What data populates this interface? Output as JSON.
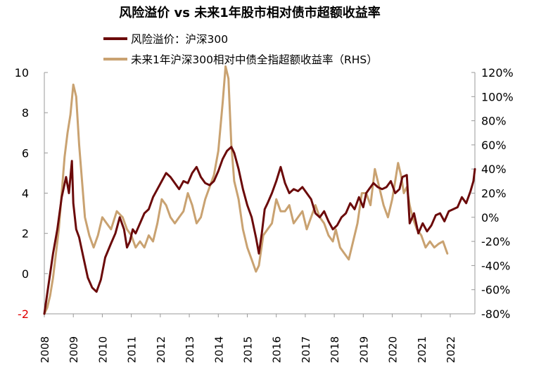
{
  "chart_data": {
    "type": "line",
    "title": "风险溢价 vs 未来1年股市相对债市超额收益率",
    "xlabel": "",
    "ylabel": "",
    "x_ticks": [
      "2008",
      "2009",
      "2010",
      "2011",
      "2012",
      "2013",
      "2014",
      "2015",
      "2016",
      "2017",
      "2018",
      "2019",
      "2020",
      "2021",
      "2022"
    ],
    "xlim": [
      2008.0,
      2022.85
    ],
    "y_left": {
      "ylim": [
        -2,
        10
      ],
      "ticks": [
        "-2",
        "0",
        "2",
        "4",
        "6",
        "8",
        "10"
      ],
      "neg_tick_color": "#e00000"
    },
    "y_right": {
      "ylim": [
        -80,
        120
      ],
      "ticks": [
        "-80%",
        "-60%",
        "-40%",
        "-20%",
        "0%",
        "20%",
        "40%",
        "60%",
        "80%",
        "100%",
        "120%"
      ]
    },
    "legend": {
      "position": "top-left"
    },
    "grid": false,
    "series": [
      {
        "name": "风险溢价：沪深300",
        "axis": "left",
        "color": "#6b0a0a",
        "x": [
          2008.0,
          2008.15,
          2008.3,
          2008.45,
          2008.6,
          2008.75,
          2008.85,
          2008.95,
          2009.0,
          2009.1,
          2009.2,
          2009.35,
          2009.5,
          2009.65,
          2009.8,
          2009.95,
          2010.1,
          2010.3,
          2010.45,
          2010.6,
          2010.75,
          2010.85,
          2010.95,
          2011.05,
          2011.15,
          2011.3,
          2011.45,
          2011.6,
          2011.75,
          2011.9,
          2012.05,
          2012.2,
          2012.35,
          2012.5,
          2012.65,
          2012.8,
          2012.95,
          2013.1,
          2013.25,
          2013.4,
          2013.55,
          2013.7,
          2013.85,
          2014.0,
          2014.15,
          2014.3,
          2014.45,
          2014.55,
          2014.7,
          2014.85,
          2015.0,
          2015.15,
          2015.3,
          2015.4,
          2015.5,
          2015.6,
          2015.7,
          2015.85,
          2016.0,
          2016.15,
          2016.3,
          2016.45,
          2016.6,
          2016.75,
          2016.9,
          2017.05,
          2017.2,
          2017.35,
          2017.5,
          2017.65,
          2017.8,
          2017.95,
          2018.1,
          2018.25,
          2018.4,
          2018.55,
          2018.7,
          2018.85,
          2019.0,
          2019.1,
          2019.2,
          2019.35,
          2019.5,
          2019.65,
          2019.8,
          2019.95,
          2020.1,
          2020.25,
          2020.35,
          2020.5,
          2020.6,
          2020.75,
          2020.9,
          2021.05,
          2021.2,
          2021.35,
          2021.5,
          2021.65,
          2021.8,
          2021.95,
          2022.1,
          2022.25,
          2022.4,
          2022.55,
          2022.7,
          2022.8,
          2022.85
        ],
        "values": [
          -2.0,
          -0.5,
          1.0,
          2.2,
          3.8,
          4.8,
          4.0,
          5.6,
          3.5,
          2.2,
          1.8,
          0.8,
          -0.2,
          -0.7,
          -0.9,
          -0.3,
          0.8,
          1.5,
          2.0,
          2.8,
          2.2,
          1.3,
          1.6,
          2.2,
          2.0,
          2.5,
          3.0,
          3.2,
          3.8,
          4.2,
          4.6,
          5.0,
          4.8,
          4.5,
          4.2,
          4.6,
          4.5,
          5.0,
          5.3,
          4.8,
          4.5,
          4.4,
          4.6,
          5.1,
          5.7,
          6.1,
          6.3,
          6.0,
          5.2,
          4.2,
          3.4,
          2.8,
          1.8,
          1.0,
          2.0,
          3.2,
          3.5,
          4.0,
          4.6,
          5.3,
          4.5,
          4.0,
          4.2,
          4.1,
          4.3,
          4.0,
          3.7,
          3.0,
          2.8,
          3.1,
          2.6,
          2.2,
          2.4,
          2.8,
          3.0,
          3.5,
          3.2,
          3.8,
          3.3,
          4.0,
          4.2,
          4.5,
          4.3,
          4.2,
          4.3,
          4.6,
          4.0,
          4.2,
          4.8,
          4.9,
          2.5,
          3.0,
          2.0,
          2.5,
          2.1,
          2.4,
          2.9,
          3.0,
          2.6,
          3.1,
          3.2,
          3.3,
          3.8,
          3.5,
          4.1,
          4.6,
          5.2
        ]
      },
      {
        "name": "未来1年沪深300相对中债全指超额收益率（RHS）",
        "axis": "right",
        "color": "#c9a271",
        "x": [
          2008.0,
          2008.1,
          2008.2,
          2008.3,
          2008.4,
          2008.5,
          2008.6,
          2008.7,
          2008.8,
          2008.9,
          2009.0,
          2009.1,
          2009.2,
          2009.3,
          2009.4,
          2009.55,
          2009.7,
          2009.85,
          2010.0,
          2010.15,
          2010.3,
          2010.5,
          2010.7,
          2010.85,
          2011.0,
          2011.15,
          2011.3,
          2011.45,
          2011.6,
          2011.75,
          2011.9,
          2012.05,
          2012.2,
          2012.35,
          2012.5,
          2012.65,
          2012.8,
          2012.95,
          2013.1,
          2013.25,
          2013.4,
          2013.55,
          2013.7,
          2013.85,
          2014.0,
          2014.15,
          2014.25,
          2014.35,
          2014.45,
          2014.55,
          2014.7,
          2014.85,
          2015.0,
          2015.15,
          2015.3,
          2015.4,
          2015.55,
          2015.7,
          2015.85,
          2016.0,
          2016.15,
          2016.3,
          2016.45,
          2016.6,
          2016.75,
          2016.9,
          2017.05,
          2017.2,
          2017.35,
          2017.5,
          2017.65,
          2017.8,
          2017.95,
          2018.05,
          2018.2,
          2018.35,
          2018.5,
          2018.65,
          2018.8,
          2018.95,
          2019.1,
          2019.25,
          2019.4,
          2019.55,
          2019.7,
          2019.85,
          2020.0,
          2020.1,
          2020.2,
          2020.3,
          2020.4,
          2020.5,
          2020.6,
          2020.7,
          2020.85,
          2021.0,
          2021.15,
          2021.3,
          2021.45,
          2021.6,
          2021.75,
          2021.9
        ],
        "values": [
          -80,
          -75,
          -65,
          -50,
          -30,
          -10,
          20,
          50,
          70,
          85,
          110,
          100,
          60,
          30,
          0,
          -15,
          -25,
          -15,
          0,
          -5,
          -10,
          5,
          0,
          -10,
          -15,
          -25,
          -20,
          -25,
          -15,
          -20,
          -5,
          15,
          10,
          0,
          -5,
          0,
          5,
          20,
          10,
          -5,
          0,
          15,
          25,
          35,
          55,
          95,
          125,
          115,
          60,
          30,
          15,
          -10,
          -25,
          -35,
          -45,
          -40,
          -15,
          -10,
          -5,
          15,
          5,
          5,
          10,
          -5,
          0,
          5,
          -10,
          0,
          10,
          0,
          -5,
          -15,
          -20,
          -10,
          -25,
          -30,
          -35,
          -20,
          -5,
          20,
          20,
          10,
          40,
          25,
          10,
          0,
          15,
          30,
          45,
          35,
          20,
          25,
          10,
          0,
          -10,
          -15,
          -25,
          -20,
          -25,
          -22,
          -20,
          -30
        ]
      }
    ]
  }
}
